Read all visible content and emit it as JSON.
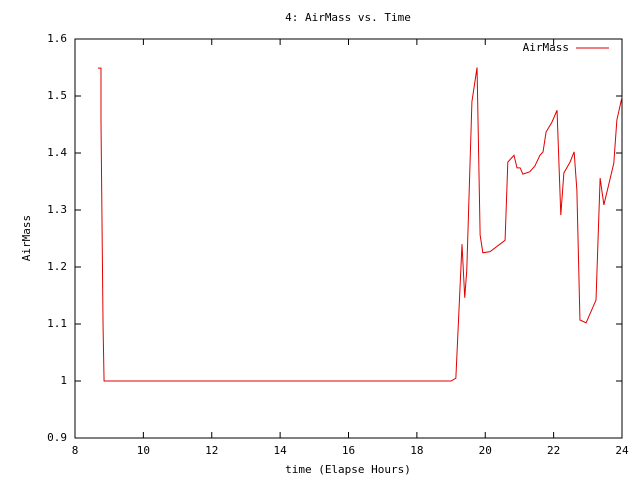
{
  "chart_data": {
    "type": "line",
    "title": "4: AirMass vs. Time",
    "x_label": "time (Elapse Hours)",
    "y_label": "AirMass",
    "x": [
      8.67,
      8.76,
      8.76,
      8.82,
      8.85,
      19.0,
      19.14,
      19.32,
      19.4,
      19.46,
      19.61,
      19.76,
      19.85,
      19.93,
      20.14,
      20.43,
      20.58,
      20.66,
      20.84,
      20.93,
      21.02,
      21.1,
      21.3,
      21.45,
      21.6,
      21.69,
      21.78,
      21.95,
      22.1,
      22.21,
      22.3,
      22.48,
      22.6,
      22.68,
      22.77,
      22.95,
      23.24,
      23.36,
      23.47,
      23.76,
      23.85,
      24.0
    ],
    "series": [
      {
        "name": "AirMass",
        "color": "#e00000",
        "values": [
          1.549,
          1.549,
          1.458,
          1.1,
          1.0,
          1.0,
          1.005,
          1.24,
          1.146,
          1.195,
          1.49,
          1.55,
          1.256,
          1.225,
          1.227,
          1.24,
          1.247,
          1.384,
          1.396,
          1.374,
          1.374,
          1.363,
          1.367,
          1.377,
          1.396,
          1.402,
          1.437,
          1.454,
          1.475,
          1.291,
          1.365,
          1.384,
          1.402,
          1.335,
          1.107,
          1.102,
          1.142,
          1.356,
          1.309,
          1.382,
          1.458,
          1.498
        ]
      }
    ],
    "xlim": [
      8,
      24
    ],
    "xticks": [
      8,
      10,
      12,
      14,
      16,
      18,
      20,
      22,
      24
    ],
    "ylim": [
      0.9,
      1.6
    ],
    "yticks": [
      0.9,
      1,
      1.1,
      1.2,
      1.3,
      1.4,
      1.5,
      1.6
    ],
    "grid": false,
    "legend_position": "upper right"
  }
}
